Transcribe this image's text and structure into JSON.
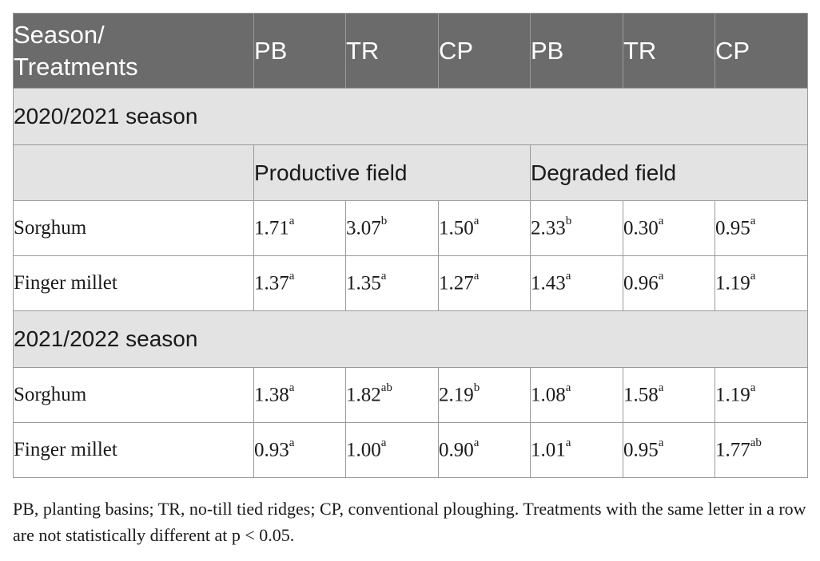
{
  "header": {
    "season_treatments": "Season/ Treatments",
    "cols": [
      "PB",
      "TR",
      "CP",
      "PB",
      "TR",
      "CP"
    ]
  },
  "field_labels": {
    "productive": "Productive field",
    "degraded": "Degraded field"
  },
  "seasons": [
    {
      "label": "2020/2021 season",
      "rows": [
        {
          "crop": "Sorghum",
          "values": [
            {
              "v": "1.71",
              "s": "a"
            },
            {
              "v": "3.07",
              "s": "b"
            },
            {
              "v": "1.50",
              "s": "a"
            },
            {
              "v": "2.33",
              "s": "b"
            },
            {
              "v": "0.30",
              "s": "a"
            },
            {
              "v": "0.95",
              "s": "a"
            }
          ]
        },
        {
          "crop": "Finger millet",
          "values": [
            {
              "v": "1.37",
              "s": "a"
            },
            {
              "v": "1.35",
              "s": "a"
            },
            {
              "v": "1.27",
              "s": "a"
            },
            {
              "v": "1.43",
              "s": "a"
            },
            {
              "v": "0.96",
              "s": "a"
            },
            {
              "v": "1.19",
              "s": "a"
            }
          ]
        }
      ]
    },
    {
      "label": "2021/2022 season",
      "rows": [
        {
          "crop": "Sorghum",
          "values": [
            {
              "v": "1.38",
              "s": "a"
            },
            {
              "v": "1.82",
              "s": "ab"
            },
            {
              "v": "2.19",
              "s": "b"
            },
            {
              "v": "1.08",
              "s": "a"
            },
            {
              "v": "1.58",
              "s": "a"
            },
            {
              "v": "1.19",
              "s": "a"
            }
          ]
        },
        {
          "crop": "Finger millet",
          "values": [
            {
              "v": "0.93",
              "s": "a"
            },
            {
              "v": "1.00",
              "s": "a"
            },
            {
              "v": "0.90",
              "s": "a"
            },
            {
              "v": "1.01",
              "s": "a"
            },
            {
              "v": "0.95",
              "s": "a"
            },
            {
              "v": "1.77",
              "s": "ab"
            }
          ]
        }
      ]
    }
  ],
  "footnote": "PB, planting basins; TR, no-till tied ridges; CP, conventional ploughing. Treatments with the same letter in a row are not statistically different at p < 0.05."
}
